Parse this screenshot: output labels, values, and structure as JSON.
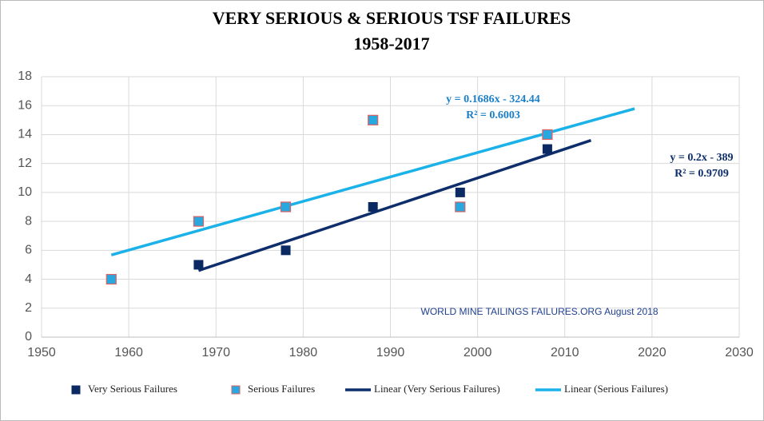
{
  "chart_data": {
    "type": "scatter",
    "title": "VERY SERIOUS & SERIOUS TSF FAILURES",
    "subtitle": "1958-2017",
    "xlim": [
      1950,
      2030
    ],
    "xticks": [
      1950,
      1960,
      1970,
      1980,
      1990,
      2000,
      2010,
      2020,
      2030
    ],
    "ylim": [
      0,
      18
    ],
    "yticks": [
      0,
      2,
      4,
      6,
      8,
      10,
      12,
      14,
      16,
      18
    ],
    "grid": true,
    "series": [
      {
        "name": "Very Serious Failures",
        "kind": "marker",
        "color": "#0b2a63",
        "x": [
          1968,
          1978,
          1988,
          1998,
          2008
        ],
        "values": [
          5,
          6,
          9,
          10,
          13
        ]
      },
      {
        "name": "Serious Failures",
        "kind": "marker",
        "color": "#29a8e0",
        "x": [
          1958,
          1968,
          1978,
          1988,
          1998,
          2008
        ],
        "values": [
          4,
          8,
          9,
          15,
          9,
          14
        ]
      },
      {
        "name": "Linear (Very Serious Failures)",
        "kind": "line",
        "color": "#0e2d6b",
        "x": [
          1968,
          2013
        ],
        "values": [
          4.6,
          13.6
        ]
      },
      {
        "name": "Linear (Serious Failures)",
        "kind": "line",
        "color": "#1ab2e8",
        "x": [
          1958,
          2018
        ],
        "values": [
          5.68,
          15.79
        ]
      }
    ],
    "annotations": [
      "y = 0.1686x - 324.44",
      "R² = 0.6003",
      "y = 0.2x - 389",
      "R² = 0.9709",
      "WORLD MINE TAILINGS FAILURES.ORG August  2018"
    ]
  }
}
